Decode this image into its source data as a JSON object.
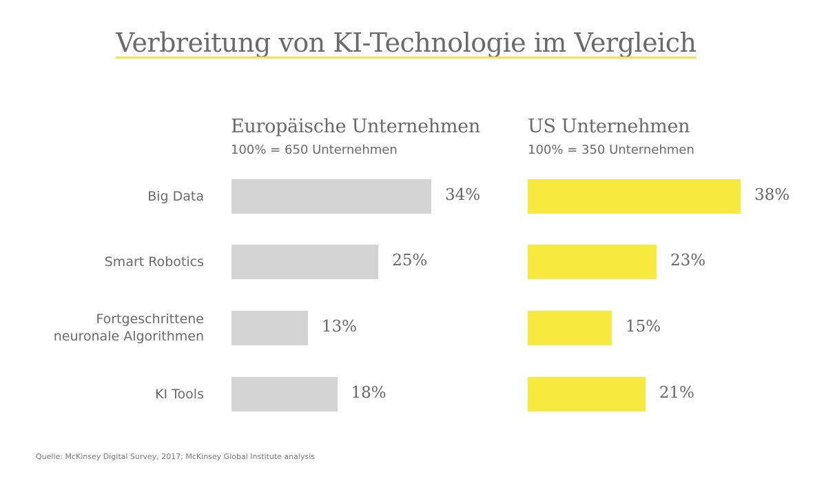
{
  "chart_data": {
    "type": "bar",
    "orientation": "horizontal",
    "title": "Verbreitung von KI-Technologie im Vergleich",
    "categories": [
      "Big Data",
      "Smart Robotics",
      "Fortgeschrittene neuronale Algorithmen",
      "KI Tools"
    ],
    "category_lines": [
      [
        "Big Data"
      ],
      [
        "Smart Robotics"
      ],
      [
        "Fortgeschrittene",
        "neuronale Algorithmen"
      ],
      [
        "KI Tools"
      ]
    ],
    "series": [
      {
        "name": "Europäische Unternehmen",
        "subtitle": "100% = 650 Unternehmen",
        "values": [
          34,
          25,
          13,
          18
        ],
        "labels": [
          "34%",
          "25%",
          "13%",
          "18%"
        ],
        "color": "#d4d4d4"
      },
      {
        "name": "US Unternehmen",
        "subtitle": "100% = 350 Unternehmen",
        "values": [
          38,
          23,
          15,
          21
        ],
        "labels": [
          "38%",
          "23%",
          "15%",
          "21%"
        ],
        "color": "#f7e93e"
      }
    ],
    "unit": "%",
    "xlabel": "",
    "ylabel": "",
    "grid": false,
    "legend": "none (series shown as column headers)"
  },
  "accent_color": "#f5e83a",
  "source": "Quelle: McKinsey Digital Survey, 2017; McKinsey Global Institute analysis"
}
